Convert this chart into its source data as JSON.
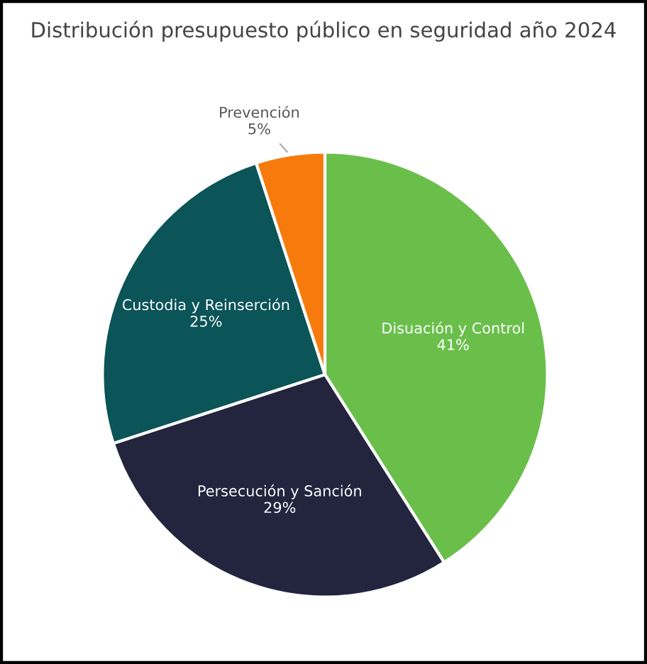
{
  "chart_data": {
    "type": "pie",
    "title": "Distribución presupuesto público en seguridad año 2024",
    "categories": [
      "Disuación y Control",
      "Persecución y Sanción",
      "Custodia y Reinserción",
      "Prevención"
    ],
    "values": [
      41,
      29,
      25,
      5
    ],
    "value_labels": [
      "41%",
      "29%",
      "25%",
      "5%"
    ],
    "colors": [
      "#6abf4b",
      "#23253f",
      "#0b5458",
      "#f77b0c"
    ],
    "legend": false
  }
}
